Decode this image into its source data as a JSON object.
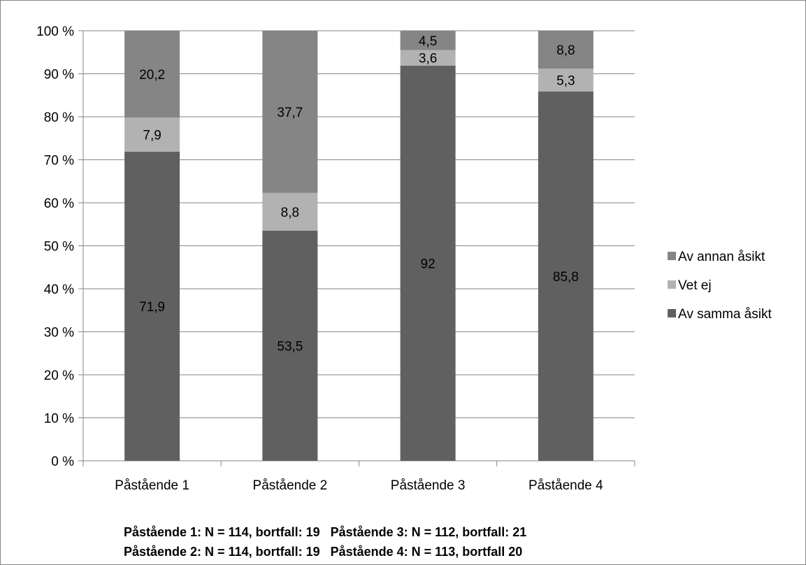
{
  "chart_data": {
    "type": "bar",
    "stacked": true,
    "percent_stacked": true,
    "categories": [
      "Påstående 1",
      "Påstående 2",
      "Påstående 3",
      "Påstående 4"
    ],
    "series": [
      {
        "name": "Av samma åsikt",
        "values": [
          71.9,
          53.5,
          92,
          85.8
        ],
        "labels": [
          "71,9",
          "53,5",
          "92",
          "85,8"
        ],
        "color": "#606060"
      },
      {
        "name": "Vet ej",
        "values": [
          7.9,
          8.8,
          3.6,
          5.3
        ],
        "labels": [
          "7,9",
          "8,8",
          "3,6",
          "5,3"
        ],
        "color": "#b2b2b2"
      },
      {
        "name": "Av annan åsikt",
        "values": [
          20.2,
          37.7,
          4.5,
          8.8
        ],
        "labels": [
          "20,2",
          "37,7",
          "4,5",
          "8,8"
        ],
        "color": "#858585"
      }
    ],
    "ylim": [
      0,
      100
    ],
    "yticks": [
      "0 %",
      "10 %",
      "20 %",
      "30 %",
      "40 %",
      "50 %",
      "60 %",
      "70 %",
      "80 %",
      "90 %",
      "100 %"
    ],
    "grid": true,
    "legend_position": "right",
    "gridline_color": "#868686",
    "title": "",
    "xlabel": "",
    "ylabel": ""
  },
  "notes": {
    "line1": "Påstående 1: N = 114, bortfall: 19   Påstående 3: N = 112, bortfall: 21",
    "line2": "Påstående 2: N = 114, bortfall: 19   Påstående 4: N = 113, bortfall 20"
  }
}
